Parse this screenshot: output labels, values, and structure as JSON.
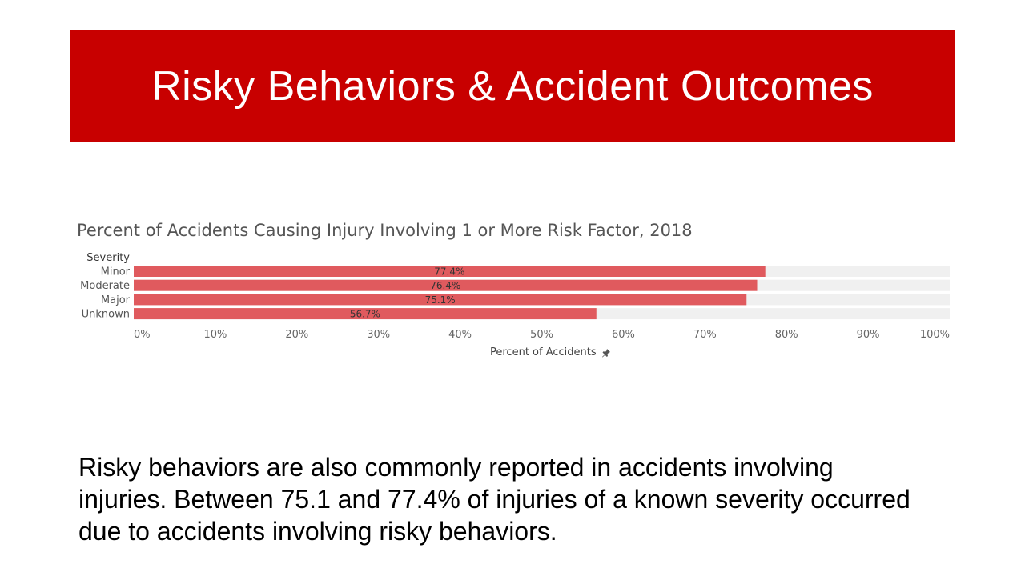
{
  "slide": {
    "title": "Risky Behaviors & Accident Outcomes",
    "body": "Risky behaviors are also commonly reported in accidents involving injuries. Between 75.1 and 77.4% of injuries of a known severity occurred due to accidents involving risky behaviors."
  },
  "colors": {
    "banner": "#c80000",
    "bar": "#e05a5e",
    "track": "#f0f0f0"
  },
  "chart_data": {
    "type": "bar",
    "orientation": "horizontal",
    "title": "Percent of Accidents Causing Injury Involving 1 or More Risk Factor, 2018",
    "category_header": "Severity",
    "categories": [
      "Minor",
      "Moderate",
      "Major",
      "Unknown"
    ],
    "values": [
      77.4,
      76.4,
      75.1,
      56.7
    ],
    "value_labels": [
      "77.4%",
      "76.4%",
      "75.1%",
      "56.7%"
    ],
    "xlabel": "Percent of Accidents",
    "xlim": [
      0,
      100
    ],
    "xticks": [
      0,
      10,
      20,
      30,
      40,
      50,
      60,
      70,
      80,
      90,
      100
    ],
    "xtick_labels": [
      "0%",
      "10%",
      "20%",
      "30%",
      "40%",
      "50%",
      "60%",
      "70%",
      "80%",
      "90%",
      "100%"
    ],
    "grid": false,
    "legend": "none",
    "xlabel_icon": "pin-icon"
  }
}
